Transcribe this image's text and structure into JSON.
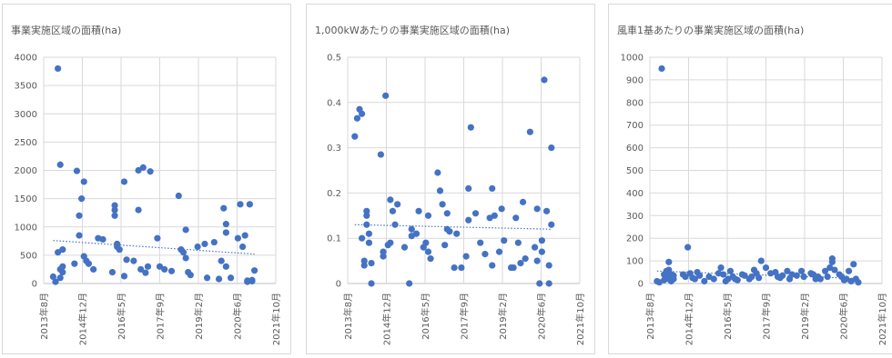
{
  "chart_data": [
    {
      "type": "scatter",
      "title": "事業実施区域の面積(ha)",
      "xlabel": "",
      "ylabel": "",
      "ylim": [
        0,
        4000
      ],
      "yticks": [
        "0",
        "500",
        "1000",
        "1500",
        "2000",
        "2500",
        "3000",
        "3500",
        "4000"
      ],
      "x_tick_labels": [
        "2013年8月",
        "2014年12月",
        "2016年5月",
        "2017年9月",
        "2019年2月",
        "2020年6月",
        "2021年10月"
      ],
      "xlim": [
        "2013-08",
        "2021-10"
      ],
      "grid": true,
      "trendline": {
        "style": "dotted linear",
        "y_start": 760,
        "y_end": 520
      },
      "series": [
        {
          "x": [
            "2013-12",
            "2014-01",
            "2014-02",
            "2014-02",
            "2014-03",
            "2014-03",
            "2014-03",
            "2014-04",
            "2014-04",
            "2014-04",
            "2014-09",
            "2014-10",
            "2014-11",
            "2014-11",
            "2014-12",
            "2015-01",
            "2015-01",
            "2015-02",
            "2015-03",
            "2015-05",
            "2015-07",
            "2015-09",
            "2016-01",
            "2016-02",
            "2016-02",
            "2016-02",
            "2016-03",
            "2016-03",
            "2016-04",
            "2016-06",
            "2016-06",
            "2016-07",
            "2016-10",
            "2016-12",
            "2016-12",
            "2017-01",
            "2017-02",
            "2017-03",
            "2017-04",
            "2017-05",
            "2017-08",
            "2017-09",
            "2017-11",
            "2018-02",
            "2018-05",
            "2018-06",
            "2018-07",
            "2018-08",
            "2018-08",
            "2018-09",
            "2018-10",
            "2019-01",
            "2019-04",
            "2019-05",
            "2019-08",
            "2019-10",
            "2019-11",
            "2019-12",
            "2020-01",
            "2020-01",
            "2020-01",
            "2020-03",
            "2020-06",
            "2020-07",
            "2020-08",
            "2020-09",
            "2020-10",
            "2020-10",
            "2020-11",
            "2020-12",
            "2020-12",
            "2021-01"
          ],
          "y": [
            120,
            30,
            3800,
            550,
            100,
            250,
            2100,
            600,
            300,
            200,
            350,
            1990,
            1200,
            850,
            1500,
            1800,
            480,
            400,
            350,
            250,
            800,
            780,
            200,
            1380,
            1300,
            1200,
            700,
            650,
            600,
            130,
            1800,
            420,
            400,
            1300,
            2000,
            250,
            2050,
            190,
            300,
            1980,
            800,
            300,
            250,
            220,
            1550,
            600,
            550,
            950,
            450,
            200,
            150,
            650,
            700,
            100,
            730,
            80,
            400,
            1330,
            1050,
            900,
            300,
            100,
            800,
            1400,
            650,
            850,
            50,
            30,
            1400,
            60,
            40,
            230
          ]
        }
      ]
    },
    {
      "type": "scatter",
      "title": "1,000kWあたりの事業実施区域の面積(ha)",
      "xlabel": "",
      "ylabel": "",
      "ylim": [
        0,
        0.5
      ],
      "yticks": [
        "0",
        "0.1",
        "0.2",
        "0.3",
        "0.4",
        "0.5"
      ],
      "x_tick_labels": [
        "2013年8月",
        "2014年12月",
        "2016年5月",
        "2017年9月",
        "2019年2月",
        "2020年6月",
        "2021年10月"
      ],
      "xlim": [
        "2013-08",
        "2021-10"
      ],
      "grid": true,
      "trendline": {
        "style": "dotted linear",
        "y_start": 0.13,
        "y_end": 0.12
      },
      "series": [
        {
          "x": [
            "2013-11",
            "2013-12",
            "2014-01",
            "2014-02",
            "2014-02",
            "2014-03",
            "2014-03",
            "2014-04",
            "2014-04",
            "2014-04",
            "2014-05",
            "2014-05",
            "2014-06",
            "2014-06",
            "2014-10",
            "2014-11",
            "2014-11",
            "2014-12",
            "2015-01",
            "2015-02",
            "2015-02",
            "2015-03",
            "2015-04",
            "2015-05",
            "2015-08",
            "2015-10",
            "2015-11",
            "2015-11",
            "2016-01",
            "2016-02",
            "2016-04",
            "2016-05",
            "2016-06",
            "2016-06",
            "2016-07",
            "2016-10",
            "2016-11",
            "2016-12",
            "2017-01",
            "2017-02",
            "2017-02",
            "2017-03",
            "2017-05",
            "2017-06",
            "2017-08",
            "2017-10",
            "2017-11",
            "2017-11",
            "2017-12",
            "2018-02",
            "2018-04",
            "2018-06",
            "2018-08",
            "2018-09",
            "2018-09",
            "2018-10",
            "2018-12",
            "2019-01",
            "2019-02",
            "2019-05",
            "2019-06",
            "2019-07",
            "2019-08",
            "2019-09",
            "2019-10",
            "2019-11",
            "2020-01",
            "2020-03",
            "2020-04",
            "2020-04",
            "2020-05",
            "2020-06",
            "2020-06",
            "2020-07",
            "2020-08",
            "2020-09",
            "2020-09",
            "2020-10",
            "2020-10"
          ],
          "y": [
            0.325,
            0.365,
            0.385,
            0.375,
            0.1,
            0.05,
            0.04,
            0.16,
            0.15,
            0.13,
            0.11,
            0.09,
            0.045,
            0.0,
            0.285,
            0.07,
            0.06,
            0.415,
            0.085,
            0.185,
            0.09,
            0.16,
            0.13,
            0.175,
            0.08,
            0.0,
            0.12,
            0.105,
            0.11,
            0.16,
            0.08,
            0.09,
            0.15,
            0.07,
            0.055,
            0.245,
            0.205,
            0.175,
            0.085,
            0.12,
            0.155,
            0.115,
            0.035,
            0.11,
            0.035,
            0.06,
            0.14,
            0.21,
            0.345,
            0.155,
            0.09,
            0.065,
            0.145,
            0.04,
            0.21,
            0.15,
            0.07,
            0.165,
            0.095,
            0.035,
            0.035,
            0.145,
            0.09,
            0.045,
            0.18,
            0.055,
            0.335,
            0.08,
            0.165,
            0.05,
            0.0,
            0.07,
            0.095,
            0.45,
            0.16,
            0.0,
            0.04,
            0.3,
            0.13
          ]
        }
      ]
    },
    {
      "type": "scatter",
      "title": "風車1基あたりの事業実施区域の面積(ha)",
      "xlabel": "",
      "ylabel": "",
      "ylim": [
        0,
        1000
      ],
      "yticks": [
        "0",
        "100",
        "200",
        "300",
        "400",
        "500",
        "600",
        "700",
        "800",
        "900",
        "1000"
      ],
      "x_tick_labels": [
        "2013年8月",
        "2014年12月",
        "2016年5月",
        "2017年9月",
        "2019年2月",
        "2020年6月",
        "2021年10月"
      ],
      "xlim": [
        "2013-08",
        "2021-10"
      ],
      "grid": true,
      "trendline": {
        "style": "dotted linear",
        "y_start": 55,
        "y_end": 22
      },
      "series": [
        {
          "x": [
            "2013-11",
            "2013-12",
            "2014-01",
            "2014-02",
            "2014-02",
            "2014-03",
            "2014-03",
            "2014-04",
            "2014-04",
            "2014-04",
            "2014-05",
            "2014-05",
            "2014-06",
            "2014-06",
            "2014-10",
            "2014-11",
            "2014-12",
            "2015-01",
            "2015-02",
            "2015-03",
            "2015-04",
            "2015-05",
            "2015-07",
            "2015-09",
            "2015-11",
            "2016-01",
            "2016-02",
            "2016-03",
            "2016-04",
            "2016-05",
            "2016-06",
            "2016-07",
            "2016-08",
            "2016-09",
            "2016-11",
            "2016-12",
            "2017-02",
            "2017-03",
            "2017-04",
            "2017-05",
            "2017-06",
            "2017-07",
            "2017-09",
            "2017-11",
            "2018-01",
            "2018-02",
            "2018-03",
            "2018-04",
            "2018-06",
            "2018-07",
            "2018-08",
            "2018-10",
            "2018-12",
            "2019-01",
            "2019-04",
            "2019-05",
            "2019-06",
            "2019-07",
            "2019-08",
            "2019-10",
            "2019-11",
            "2019-12",
            "2020-01",
            "2020-01",
            "2020-02",
            "2020-04",
            "2020-05",
            "2020-06",
            "2020-07",
            "2020-08",
            "2020-09",
            "2020-10",
            "2020-11",
            "2020-12"
          ],
          "y": [
            10,
            5,
            950,
            15,
            40,
            55,
            30,
            95,
            20,
            60,
            10,
            40,
            20,
            35,
            40,
            30,
            160,
            45,
            25,
            20,
            50,
            35,
            10,
            30,
            20,
            45,
            70,
            40,
            10,
            20,
            55,
            30,
            20,
            15,
            40,
            35,
            20,
            30,
            60,
            45,
            25,
            100,
            70,
            45,
            50,
            30,
            25,
            35,
            55,
            20,
            40,
            35,
            55,
            30,
            45,
            40,
            20,
            30,
            20,
            55,
            30,
            70,
            110,
            95,
            60,
            40,
            30,
            15,
            20,
            55,
            10,
            85,
            20,
            5
          ]
        }
      ]
    }
  ]
}
